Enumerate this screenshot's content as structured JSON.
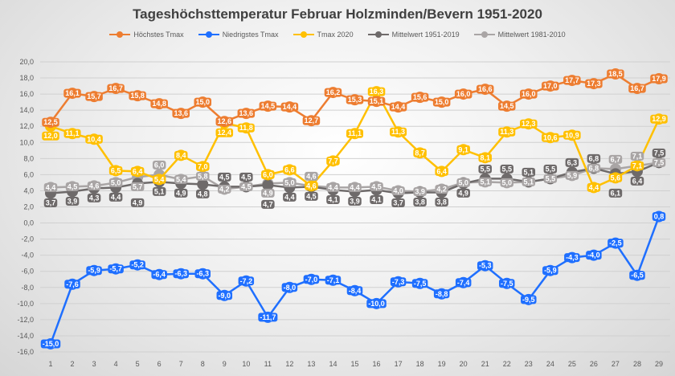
{
  "chart_data": {
    "type": "line",
    "title": "Tageshöchsttemperatur Februar Holzminden/Bevern 1951-2020",
    "xlabel": "",
    "ylabel": "",
    "x": [
      1,
      2,
      3,
      4,
      5,
      6,
      7,
      8,
      9,
      10,
      11,
      12,
      13,
      14,
      15,
      16,
      17,
      18,
      19,
      20,
      21,
      22,
      23,
      24,
      25,
      26,
      27,
      28,
      29
    ],
    "ylim": [
      -16,
      20
    ],
    "ytick_step": 2,
    "ytick_labels": [
      "-16,0",
      "-14,0",
      "-12,0",
      "-10,0",
      "-8,0",
      "-6,0",
      "-4,0",
      "-2,0",
      "0,0",
      "2,0",
      "4,0",
      "6,0",
      "8,0",
      "10,0",
      "12,0",
      "14,0",
      "16,0",
      "18,0",
      "20,0"
    ],
    "grid": true,
    "legend_position": "top",
    "series": [
      {
        "name": "Höchstes Tmax",
        "color": "#ED7D31",
        "values": [
          12.5,
          16.1,
          15.7,
          16.7,
          15.8,
          14.8,
          13.6,
          15.0,
          12.6,
          13.6,
          14.5,
          14.4,
          12.7,
          16.2,
          15.3,
          15.1,
          14.4,
          15.6,
          15.0,
          16.0,
          16.6,
          14.5,
          16.0,
          17.0,
          17.7,
          17.3,
          18.5,
          16.7,
          17.9
        ]
      },
      {
        "name": "Niedrigstes Tmax",
        "color": "#1F6FFF",
        "values": [
          -15.0,
          -7.6,
          -5.9,
          -5.7,
          -5.2,
          -6.4,
          -6.3,
          -6.3,
          -9.0,
          -7.2,
          -11.7,
          -8.0,
          -7.0,
          -7.1,
          -8.4,
          -10.0,
          -7.3,
          -7.5,
          -8.8,
          -7.4,
          -5.3,
          -7.5,
          -9.5,
          -5.9,
          -4.3,
          -4.0,
          -2.5,
          -6.5,
          0.8
        ]
      },
      {
        "name": "Tmax 2020",
        "color": "#FFC000",
        "values": [
          12.0,
          11.1,
          10.4,
          6.5,
          6.4,
          5.4,
          8.4,
          7.0,
          12.4,
          11.8,
          6.0,
          6.6,
          4.6,
          7.7,
          11.1,
          16.3,
          11.3,
          8.7,
          6.4,
          9.1,
          8.1,
          11.3,
          12.3,
          10.6,
          10.9,
          4.4,
          5.6,
          7.1,
          12.9
        ]
      },
      {
        "name": "Mittelwert 1951-2019",
        "color": "#6E6A6A",
        "values": [
          3.7,
          3.9,
          4.3,
          4.4,
          4.9,
          5.1,
          4.9,
          4.8,
          4.5,
          4.5,
          4.7,
          4.4,
          4.5,
          4.1,
          3.9,
          4.1,
          3.7,
          3.8,
          3.8,
          4.9,
          5.5,
          5.5,
          5.1,
          5.5,
          6.3,
          6.8,
          6.1,
          6.4,
          7.5
        ]
      },
      {
        "name": "Mittelwert 1981-2010",
        "color": "#A9A5A5",
        "values": [
          4.4,
          4.5,
          4.6,
          5.0,
          5.7,
          6.0,
          5.4,
          5.8,
          4.2,
          4.5,
          4.9,
          5.0,
          4.6,
          4.4,
          4.4,
          4.5,
          4.0,
          3.9,
          4.2,
          5.0,
          5.1,
          5.0,
          5.1,
          5.5,
          5.9,
          6.8,
          6.7,
          7.1,
          7.5
        ]
      }
    ]
  }
}
